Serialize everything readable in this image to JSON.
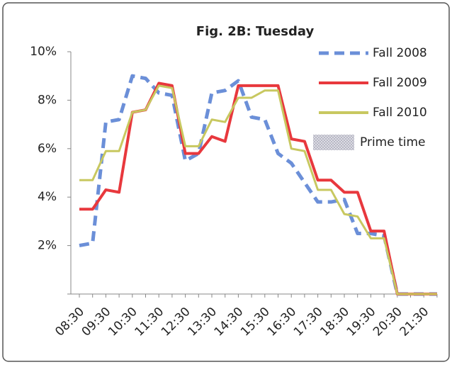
{
  "chart_data": {
    "type": "line",
    "title": "Fig. 2B: Tuesday",
    "categories": [
      "08:30",
      null,
      "09:30",
      null,
      "10:30",
      null,
      "11:30",
      null,
      "12:30",
      null,
      "13:30",
      null,
      "14:30",
      null,
      "15:30",
      null,
      "16:30",
      null,
      "17:30",
      null,
      "18:30",
      null,
      "19:30",
      null,
      "20:30",
      null,
      "21:30",
      null
    ],
    "series": [
      {
        "name": "Fall 2008",
        "color": "#6b8fd8",
        "dash": true,
        "values": [
          2,
          2.1,
          7.1,
          7.2,
          9,
          8.9,
          8.3,
          8.2,
          5.5,
          5.8,
          8.3,
          8.4,
          8.8,
          7.3,
          7.2,
          5.8,
          5.4,
          4.6,
          3.8,
          3.8,
          3.9,
          2.5,
          2.5,
          2.4,
          0,
          0,
          0,
          0
        ]
      },
      {
        "name": "Fall 2009",
        "color": "#e8383d",
        "dash": false,
        "values": [
          3.5,
          3.5,
          4.3,
          4.2,
          7.5,
          7.6,
          8.7,
          8.6,
          5.8,
          5.8,
          6.5,
          6.3,
          8.6,
          8.6,
          8.6,
          8.6,
          6.4,
          6.3,
          4.7,
          4.7,
          4.2,
          4.2,
          2.6,
          2.6,
          0,
          0,
          0,
          0
        ]
      },
      {
        "name": "Fall 2010",
        "color": "#c8c860",
        "dash": false,
        "values": [
          4.7,
          4.7,
          5.9,
          5.9,
          7.5,
          7.6,
          8.6,
          8.5,
          6.1,
          6.1,
          7.2,
          7.1,
          8.1,
          8.1,
          8.4,
          8.4,
          6.0,
          5.9,
          4.3,
          4.3,
          3.3,
          3.2,
          2.3,
          2.3,
          0,
          0,
          0,
          0
        ]
      }
    ],
    "legend_extra": [
      {
        "name": "Prime time",
        "pattern": "hatch"
      }
    ],
    "ylim": [
      0,
      10
    ],
    "yticks": [
      0,
      {
        "value": 2,
        "label": "2%"
      },
      {
        "value": 4,
        "label": "4%"
      },
      {
        "value": 6,
        "label": "6%"
      },
      {
        "value": 8,
        "label": "8%"
      },
      {
        "value": 10,
        "label": "10%"
      }
    ],
    "grid": false,
    "legend": "upper right"
  }
}
